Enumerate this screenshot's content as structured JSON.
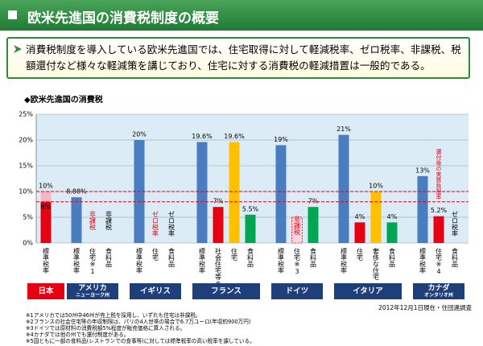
{
  "header": {
    "title": "欧米先進国の消費税制度の概要"
  },
  "summary": "消費税制度を導入している欧米先進国では、住宅取得に対して軽減税率、ゼロ税率、非課税、税額還付など様々な軽減策を講じており、住宅に対する消費税の軽減措置は一般的である。",
  "chart_data": {
    "type": "bar",
    "subtitle": "◆欧米先進国の消費税",
    "ylim": [
      0,
      25
    ],
    "yticks": [
      {
        "value": 0,
        "label": "0%"
      },
      {
        "value": 5,
        "label": "5%"
      },
      {
        "value": 10,
        "label": "10%"
      },
      {
        "value": 15,
        "label": "15%"
      },
      {
        "value": 20,
        "label": "20%"
      },
      {
        "value": 25,
        "label": "25%"
      }
    ],
    "grid": true,
    "reference_lines": [
      10,
      8
    ],
    "reference_color": "#e60012",
    "groups": [
      {
        "name": "日本",
        "box_color": "#e60012",
        "bars": [
          {
            "category": "標準税率",
            "value": 10,
            "value_label": "10%",
            "color": "#f7b8c4",
            "inner_value": 8,
            "inner_label": "8%",
            "inner_color": "#e60012"
          }
        ]
      },
      {
        "name": "アメリカ",
        "sub": "ニューヨーク州",
        "box_color": "#1f3f7a",
        "bars": [
          {
            "category": "標準税率",
            "value": 8.88,
            "value_label": "8.88%",
            "color": "#4a7cc0"
          },
          {
            "category": "住宅※1",
            "note": "非課税",
            "note_color": "#e60012"
          },
          {
            "category": "食料品",
            "note": "非課税",
            "note_color": "#000000"
          }
        ]
      },
      {
        "name": "イギリス",
        "box_color": "#1f3f7a",
        "bars": [
          {
            "category": "標準税率",
            "value": 20,
            "value_label": "20%",
            "color": "#4a7cc0"
          },
          {
            "category": "住宅",
            "note": "ゼロ税率",
            "note_color": "#e60012"
          },
          {
            "category": "食料品",
            "note": "ゼロ税率",
            "note_color": "#000000"
          }
        ]
      },
      {
        "name": "フランス",
        "box_color": "#1f3f7a",
        "bars": [
          {
            "category": "標準税率",
            "value": 19.6,
            "value_label": "19.6%",
            "color": "#4a7cc0"
          },
          {
            "category": "社会住宅等※2",
            "value": 7,
            "value_label": "7%",
            "color": "#e60012"
          },
          {
            "category": "住宅",
            "value": 19.6,
            "value_label": "19.6%",
            "color": "#ffc000"
          },
          {
            "category": "食料品",
            "value": 5.5,
            "value_label": "5.5%",
            "color": "#00a651"
          }
        ]
      },
      {
        "name": "ドイツ",
        "box_color": "#1f3f7a",
        "bars": [
          {
            "category": "標準税率",
            "value": 19,
            "value_label": "19%",
            "color": "#4a7cc0"
          },
          {
            "category": "住宅※3",
            "value": 5,
            "color": "#fbd3da",
            "dashed": true,
            "note": "非課税",
            "note_color": "#e60012"
          },
          {
            "category": "食料品",
            "value": 7,
            "value_label": "7%",
            "color": "#00a651"
          }
        ]
      },
      {
        "name": "イタリア",
        "box_color": "#1f3f7a",
        "bars": [
          {
            "category": "標準税率",
            "value": 21,
            "value_label": "21%",
            "color": "#4a7cc0"
          },
          {
            "category": "住宅",
            "value": 4,
            "value_label": "4%",
            "color": "#e60012"
          },
          {
            "category": "奢侈な住宅",
            "value": 10,
            "value_label": "10%",
            "color": "#ffc000"
          },
          {
            "category": "食料品",
            "value": 4,
            "value_label": "4%",
            "color": "#00a651"
          }
        ]
      },
      {
        "name": "カナダ",
        "sub": "オンタリオ州",
        "box_color": "#1f3f7a",
        "bars": [
          {
            "category": "標準税率",
            "value": 13,
            "value_label": "13%",
            "color": "#4a7cc0"
          },
          {
            "category": "住宅※4",
            "value": 5.2,
            "value_label": "5.2%",
            "color": "#e60012",
            "annotation": "還付後の実質負担率"
          },
          {
            "category": "食料品",
            "note": "ゼロ税率",
            "note_color": "#000000"
          }
        ]
      }
    ]
  },
  "date_note": "2012年12月1日現在・住団連調査",
  "footnotes": [
    "※1アメリカでは50州中46州が売上税を採用し、いずれも住宅は非課税。",
    "※2フランスの社会住宅等の年収制限は、パリの4人世帯の場合で6.7万ユーロ(年収約900万円)",
    "※3ドイツでは原材料の消費税額5%程度が販売価格に算入される。",
    "※4カナダでは他の州でも還付制度がある。",
    "※5国ともに一部の食料品(レストランでの食事等)に対しては標準税率の高い税率を課している。"
  ]
}
